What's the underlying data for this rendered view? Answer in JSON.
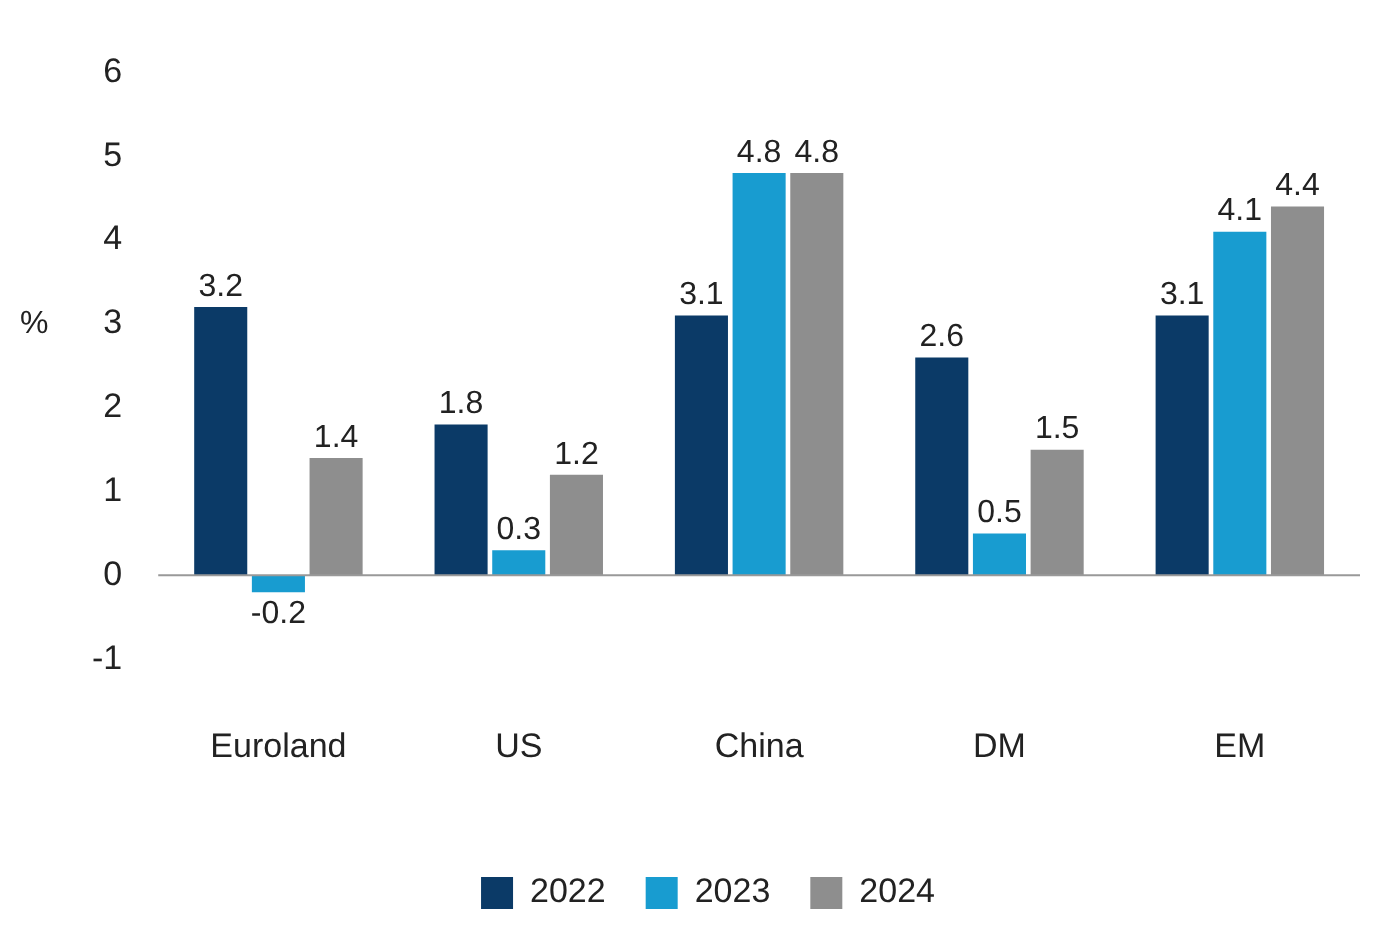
{
  "chart_data": {
    "type": "bar",
    "ylabel": "%",
    "categories": [
      "Euroland",
      "US",
      "China",
      "DM",
      "EM"
    ],
    "series": [
      {
        "name": "2022",
        "color": "#0b3a67",
        "values": [
          3.2,
          1.8,
          3.1,
          2.6,
          3.1
        ]
      },
      {
        "name": "2023",
        "color": "#189cd0",
        "values": [
          -0.2,
          0.3,
          4.8,
          0.5,
          4.1
        ]
      },
      {
        "name": "2024",
        "color": "#8e8e8e",
        "values": [
          1.4,
          1.2,
          4.8,
          1.5,
          4.4
        ]
      }
    ],
    "ylim": [
      -1,
      6
    ],
    "yticks": [
      -1,
      0,
      1,
      2,
      3,
      4,
      5,
      6
    ],
    "grid": false,
    "ref_lines": [
      {
        "axis": "y",
        "value": 0,
        "color": "#999999"
      }
    ],
    "legend": "bottom",
    "data_labels": true
  }
}
